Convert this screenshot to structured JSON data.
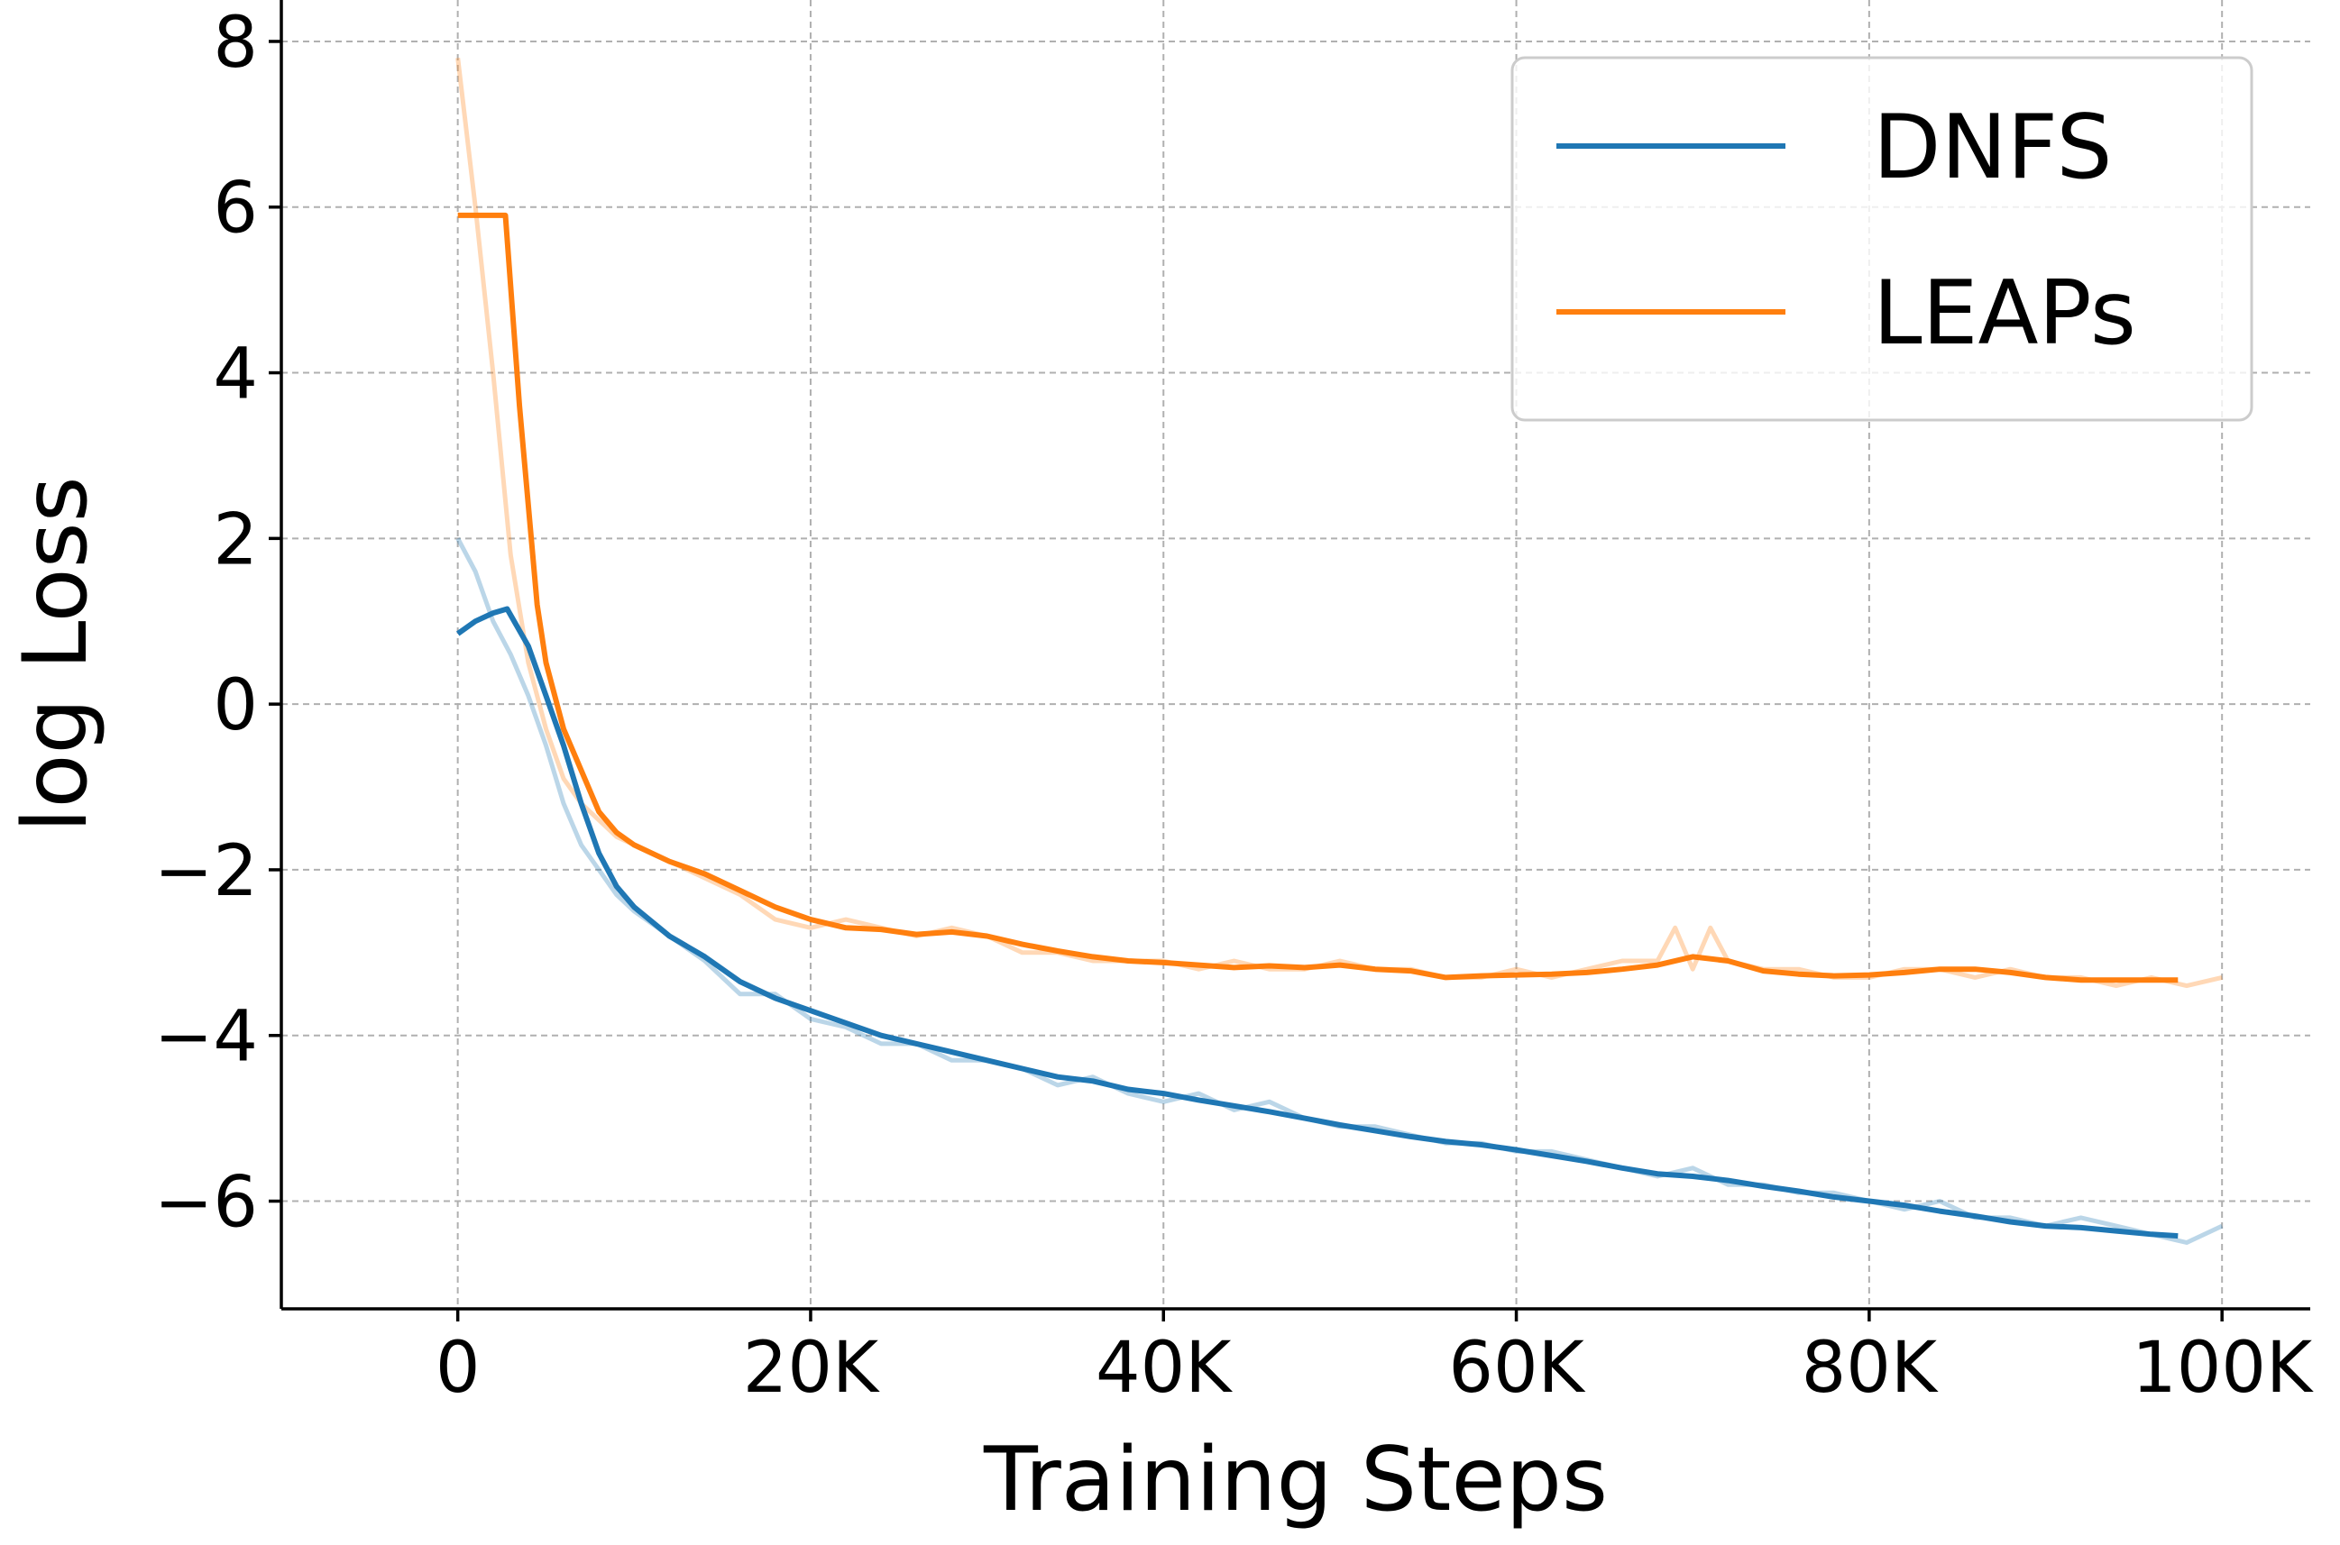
{
  "chart_data": {
    "type": "line",
    "title": "",
    "xlabel": "Training Steps",
    "ylabel": "log Loss",
    "xlim": [
      -10000,
      105000
    ],
    "ylim": [
      -7.3,
      8.5
    ],
    "xticks": [
      0,
      20000,
      40000,
      60000,
      80000,
      100000
    ],
    "xtick_labels": [
      "0",
      "20K",
      "40K",
      "60K",
      "80K",
      "100K"
    ],
    "yticks": [
      -6,
      -4,
      -2,
      0,
      2,
      4,
      6,
      8
    ],
    "ytick_labels": [
      "−6",
      "−4",
      "−2",
      "0",
      "2",
      "4",
      "6",
      "8"
    ],
    "grid": true,
    "legend_position": "top-right",
    "series": [
      {
        "name": "DNFS",
        "color": "#1f77b4",
        "raw_alpha": 0.3,
        "raw": {
          "x": [
            0,
            1000,
            2000,
            3000,
            4000,
            5000,
            6000,
            7000,
            8000,
            9000,
            10000,
            12000,
            14000,
            16000,
            18000,
            20000,
            22000,
            24000,
            26000,
            28000,
            30000,
            32000,
            34000,
            36000,
            38000,
            40000,
            42000,
            44000,
            46000,
            48000,
            50000,
            52000,
            54000,
            56000,
            58000,
            60000,
            62000,
            64000,
            66000,
            68000,
            70000,
            72000,
            74000,
            76000,
            78000,
            80000,
            82000,
            84000,
            86000,
            88000,
            90000,
            92000,
            94000,
            96000,
            98000,
            100000
          ],
          "y": [
            2.0,
            1.6,
            1.0,
            0.6,
            0.1,
            -0.5,
            -1.2,
            -1.7,
            -2.0,
            -2.3,
            -2.5,
            -2.8,
            -3.1,
            -3.5,
            -3.5,
            -3.8,
            -3.9,
            -4.1,
            -4.1,
            -4.3,
            -4.3,
            -4.4,
            -4.6,
            -4.5,
            -4.7,
            -4.8,
            -4.7,
            -4.9,
            -4.8,
            -5.0,
            -5.1,
            -5.1,
            -5.2,
            -5.3,
            -5.3,
            -5.4,
            -5.4,
            -5.5,
            -5.6,
            -5.7,
            -5.6,
            -5.8,
            -5.8,
            -5.9,
            -5.9,
            -6.0,
            -6.1,
            -6.0,
            -6.2,
            -6.2,
            -6.3,
            -6.2,
            -6.3,
            -6.4,
            -6.5,
            -6.3
          ]
        },
        "smoothed": {
          "x": [
            0,
            1000,
            2000,
            2800,
            4000,
            5000,
            6000,
            7000,
            8000,
            9000,
            10000,
            12000,
            14000,
            16000,
            18000,
            20000,
            22000,
            24000,
            26000,
            28000,
            30000,
            32000,
            34000,
            36000,
            38000,
            40000,
            42000,
            44000,
            46000,
            48000,
            50000,
            52000,
            54000,
            56000,
            58000,
            60000,
            62000,
            64000,
            66000,
            68000,
            70000,
            72000,
            74000,
            76000,
            78000,
            80000,
            82000,
            84000,
            86000,
            88000,
            90000,
            92000,
            94000,
            96000,
            97500
          ],
          "y": [
            0.85,
            1.0,
            1.1,
            1.15,
            0.7,
            0.1,
            -0.5,
            -1.2,
            -1.8,
            -2.2,
            -2.45,
            -2.8,
            -3.05,
            -3.35,
            -3.55,
            -3.7,
            -3.85,
            -4.0,
            -4.1,
            -4.2,
            -4.3,
            -4.4,
            -4.5,
            -4.55,
            -4.65,
            -4.7,
            -4.78,
            -4.85,
            -4.92,
            -5.0,
            -5.08,
            -5.15,
            -5.22,
            -5.28,
            -5.32,
            -5.38,
            -5.45,
            -5.52,
            -5.6,
            -5.67,
            -5.7,
            -5.75,
            -5.82,
            -5.88,
            -5.95,
            -6.0,
            -6.05,
            -6.12,
            -6.18,
            -6.25,
            -6.3,
            -6.32,
            -6.36,
            -6.4,
            -6.42
          ]
        }
      },
      {
        "name": "LEAPs",
        "color": "#ff7f0e",
        "raw_alpha": 0.3,
        "raw": {
          "x": [
            0,
            1000,
            2000,
            3000,
            4000,
            5000,
            6000,
            7000,
            8000,
            9000,
            10000,
            12000,
            14000,
            16000,
            18000,
            20000,
            22000,
            24000,
            26000,
            28000,
            30000,
            32000,
            34000,
            36000,
            38000,
            40000,
            42000,
            44000,
            46000,
            48000,
            50000,
            52000,
            54000,
            56000,
            58000,
            60000,
            62000,
            64000,
            66000,
            68000,
            69000,
            70000,
            71000,
            72000,
            74000,
            76000,
            78000,
            80000,
            82000,
            84000,
            86000,
            88000,
            90000,
            92000,
            94000,
            96000,
            98000,
            100000
          ],
          "y": [
            7.8,
            6.0,
            4.0,
            1.8,
            0.5,
            -0.3,
            -0.9,
            -1.2,
            -1.4,
            -1.6,
            -1.7,
            -1.9,
            -2.1,
            -2.3,
            -2.6,
            -2.7,
            -2.6,
            -2.7,
            -2.8,
            -2.7,
            -2.8,
            -3.0,
            -3.0,
            -3.1,
            -3.1,
            -3.1,
            -3.2,
            -3.1,
            -3.2,
            -3.2,
            -3.1,
            -3.2,
            -3.2,
            -3.3,
            -3.3,
            -3.2,
            -3.3,
            -3.2,
            -3.1,
            -3.1,
            -2.7,
            -3.2,
            -2.7,
            -3.1,
            -3.2,
            -3.2,
            -3.3,
            -3.3,
            -3.2,
            -3.2,
            -3.3,
            -3.2,
            -3.3,
            -3.3,
            -3.4,
            -3.3,
            -3.4,
            -3.3
          ]
        },
        "smoothed": {
          "x": [
            0,
            1000,
            2000,
            2700,
            3500,
            4500,
            5000,
            6000,
            7000,
            8000,
            9000,
            10000,
            12000,
            14000,
            16000,
            18000,
            20000,
            22000,
            24000,
            26000,
            28000,
            30000,
            32000,
            34000,
            36000,
            38000,
            40000,
            42000,
            44000,
            46000,
            48000,
            50000,
            52000,
            54000,
            56000,
            58000,
            60000,
            62000,
            64000,
            66000,
            68000,
            70000,
            72000,
            74000,
            76000,
            78000,
            80000,
            82000,
            84000,
            86000,
            88000,
            90000,
            92000,
            94000,
            96000,
            97500
          ],
          "y": [
            5.9,
            5.9,
            5.9,
            5.9,
            3.6,
            1.2,
            0.5,
            -0.3,
            -0.8,
            -1.3,
            -1.55,
            -1.7,
            -1.9,
            -2.05,
            -2.25,
            -2.45,
            -2.6,
            -2.7,
            -2.72,
            -2.78,
            -2.75,
            -2.8,
            -2.9,
            -2.98,
            -3.05,
            -3.1,
            -3.12,
            -3.15,
            -3.18,
            -3.16,
            -3.18,
            -3.15,
            -3.2,
            -3.22,
            -3.3,
            -3.28,
            -3.27,
            -3.26,
            -3.24,
            -3.2,
            -3.15,
            -3.05,
            -3.1,
            -3.22,
            -3.26,
            -3.28,
            -3.27,
            -3.24,
            -3.2,
            -3.2,
            -3.24,
            -3.3,
            -3.33,
            -3.33,
            -3.33,
            -3.33
          ]
        }
      }
    ]
  }
}
